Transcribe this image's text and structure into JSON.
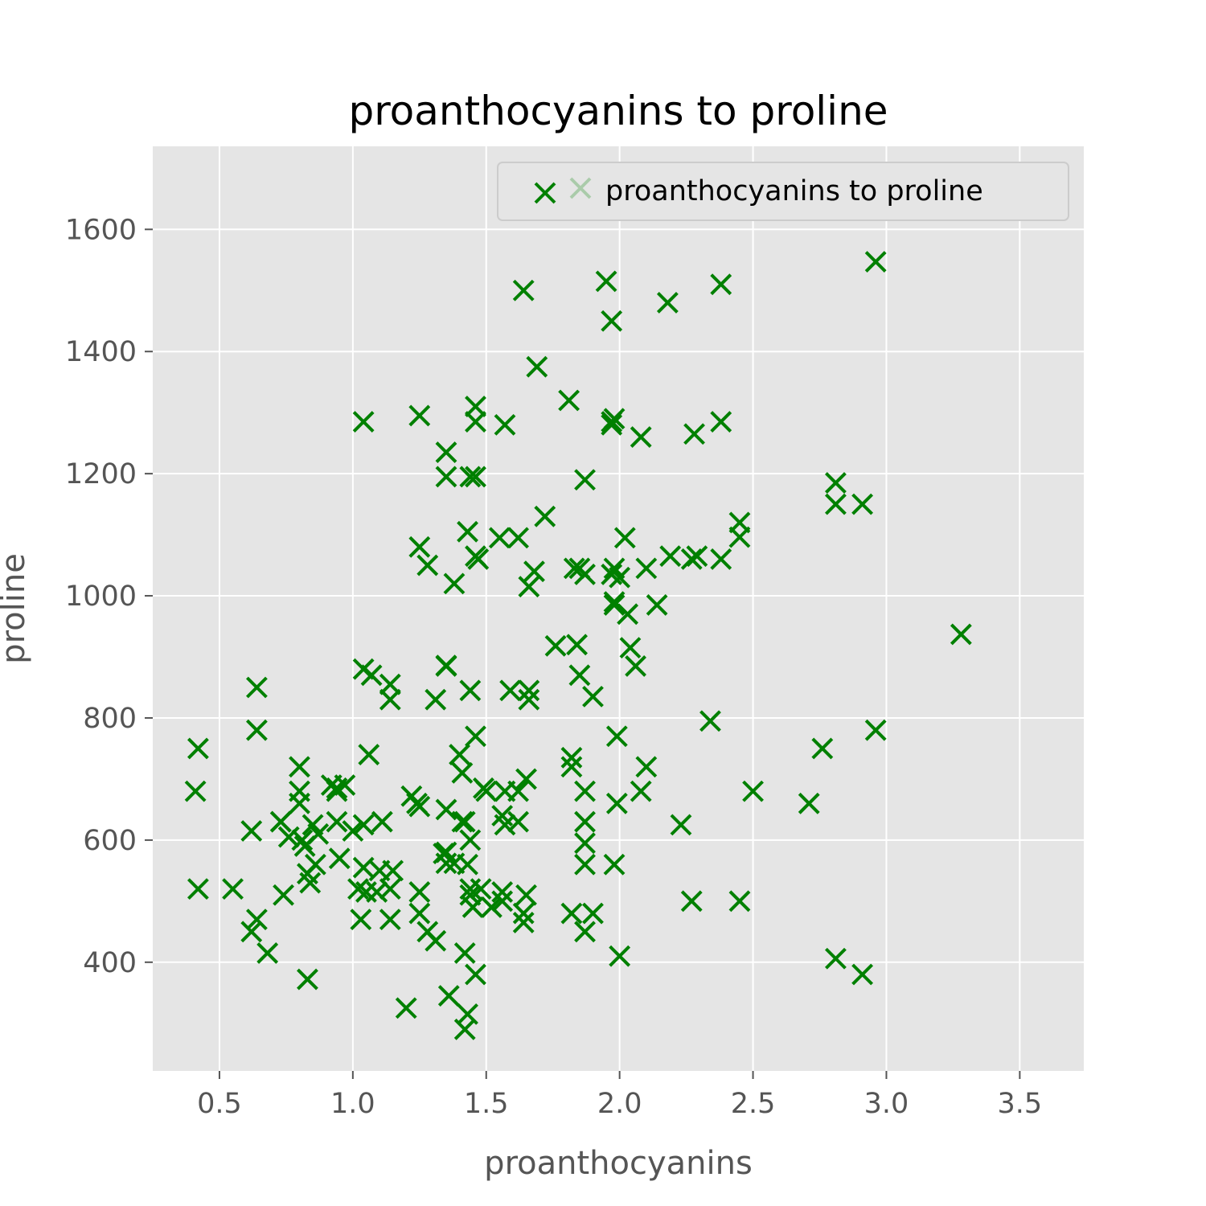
{
  "chart_data": {
    "type": "scatter",
    "title": "proanthocyanins to proline",
    "xlabel": "proanthocyanins",
    "ylabel": "proline",
    "xlim": [
      0.25,
      3.74
    ],
    "ylim": [
      222,
      1736
    ],
    "xticks": [
      "0.5",
      "1.0",
      "1.5",
      "2.0",
      "2.5",
      "3.0",
      "3.5"
    ],
    "yticks": [
      "400",
      "600",
      "800",
      "1000",
      "1200",
      "1400",
      "1600"
    ],
    "grid": true,
    "legend": {
      "position": "top-right",
      "entries": [
        "proanthocyanins to proline"
      ]
    },
    "marker": "x",
    "color": "#008000",
    "background": "#E5E5E5",
    "series": [
      {
        "name": "proanthocyanins to proline",
        "points": [
          [
            2.29,
            1065
          ],
          [
            1.28,
            1050
          ],
          [
            2.81,
            1185
          ],
          [
            2.18,
            1480
          ],
          [
            1.82,
            735
          ],
          [
            1.97,
            1450
          ],
          [
            1.98,
            1290
          ],
          [
            1.25,
            1295
          ],
          [
            1.98,
            1045
          ],
          [
            1.85,
            1045
          ],
          [
            2.38,
            1510
          ],
          [
            1.57,
            1280
          ],
          [
            1.81,
            1320
          ],
          [
            2.81,
            1150
          ],
          [
            2.96,
            1547
          ],
          [
            1.46,
            1310
          ],
          [
            1.97,
            1280
          ],
          [
            1.72,
            1130
          ],
          [
            1.86,
            1680
          ],
          [
            1.66,
            845
          ],
          [
            2.96,
            780
          ],
          [
            1.46,
            770
          ],
          [
            1.97,
            1035
          ],
          [
            1.66,
            1015
          ],
          [
            1.59,
            845
          ],
          [
            1.66,
            830
          ],
          [
            1.35,
            1195
          ],
          [
            1.97,
            1285
          ],
          [
            2.04,
            915
          ],
          [
            1.87,
            1035
          ],
          [
            1.46,
            1285
          ],
          [
            2.91,
            1150
          ],
          [
            1.35,
            1235
          ],
          [
            2.0,
            1030
          ],
          [
            1.47,
            1060
          ],
          [
            2.02,
            1095
          ],
          [
            2.1,
            1045
          ],
          [
            2.19,
            1065
          ],
          [
            1.69,
            1375
          ],
          [
            1.25,
            1080
          ],
          [
            2.38,
            1060
          ],
          [
            2.45,
            1120
          ],
          [
            1.68,
            1040
          ],
          [
            1.43,
            1105
          ],
          [
            1.55,
            1095
          ],
          [
            1.98,
            990
          ],
          [
            2.08,
            1260
          ],
          [
            2.38,
            1285
          ],
          [
            1.95,
            1515
          ],
          [
            2.34,
            795
          ],
          [
            2.06,
            885
          ],
          [
            2.03,
            970
          ],
          [
            1.41,
            710
          ],
          [
            1.62,
            1095
          ],
          [
            1.84,
            920
          ],
          [
            2.27,
            1060
          ],
          [
            1.76,
            918
          ],
          [
            1.98,
            985
          ],
          [
            2.14,
            985
          ],
          [
            3.28,
            937
          ],
          [
            1.38,
            1020
          ],
          [
            1.87,
            1190
          ],
          [
            1.44,
            1195
          ],
          [
            1.9,
            835
          ],
          [
            2.27,
            500
          ],
          [
            2.28,
            1265
          ],
          [
            2.23,
            625
          ],
          [
            1.83,
            1045
          ],
          [
            1.82,
            480
          ],
          [
            0.41,
            680
          ],
          [
            0.62,
            450
          ],
          [
            1.45,
            490
          ],
          [
            1.87,
            595
          ],
          [
            0.42,
            520
          ],
          [
            1.87,
            680
          ],
          [
            1.87,
            560
          ],
          [
            0.62,
            615
          ],
          [
            1.2,
            325
          ],
          [
            2.45,
            500
          ],
          [
            1.46,
            1195
          ],
          [
            1.87,
            630
          ],
          [
            1.49,
            685
          ],
          [
            0.94,
            630
          ],
          [
            1.04,
            1285
          ],
          [
            2.81,
            406
          ],
          [
            1.46,
            1065
          ],
          [
            2.71,
            660
          ],
          [
            2.45,
            1096
          ],
          [
            1.35,
            562
          ],
          [
            1.34,
            578
          ],
          [
            1.41,
            630
          ],
          [
            0.68,
            415
          ],
          [
            1.14,
            520
          ],
          [
            1.04,
            880
          ],
          [
            2.5,
            680
          ],
          [
            1.99,
            660
          ],
          [
            0.55,
            520
          ],
          [
            1.35,
            650
          ],
          [
            1.85,
            870
          ],
          [
            1.43,
            560
          ],
          [
            1.82,
            720
          ],
          [
            1.07,
            870
          ],
          [
            1.31,
            830
          ],
          [
            1.99,
            770
          ],
          [
            1.04,
            555
          ],
          [
            2.76,
            750
          ],
          [
            1.46,
            380
          ],
          [
            1.44,
            845
          ],
          [
            0.73,
            630
          ],
          [
            1.35,
            886
          ],
          [
            1.25,
            515
          ],
          [
            2.1,
            720
          ],
          [
            1.65,
            510
          ],
          [
            1.9,
            480
          ],
          [
            1.15,
            550
          ],
          [
            0.94,
            680
          ],
          [
            1.57,
            625
          ],
          [
            1.35,
            885
          ],
          [
            1.02,
            520
          ],
          [
            1.28,
            450
          ],
          [
            1.57,
            680
          ],
          [
            1.62,
            630
          ],
          [
            1.62,
            680
          ],
          [
            1.04,
            625
          ],
          [
            1.64,
            480
          ],
          [
            1.52,
            490
          ],
          [
            0.8,
            720
          ],
          [
            0.83,
            372
          ],
          [
            2.91,
            380
          ],
          [
            1.48,
            520
          ],
          [
            1.38,
            562
          ],
          [
            1.56,
            515
          ],
          [
            1.42,
            630
          ],
          [
            0.64,
            780
          ],
          [
            1.44,
            510
          ],
          [
            0.74,
            510
          ],
          [
            1.64,
            465
          ],
          [
            1.25,
            480
          ],
          [
            0.42,
            750
          ],
          [
            1.42,
            290
          ],
          [
            1.56,
            500
          ],
          [
            0.64,
            470
          ],
          [
            1.56,
            640
          ],
          [
            1.43,
            315
          ],
          [
            1.22,
            672
          ],
          [
            1.44,
            520
          ],
          [
            1.14,
            855
          ],
          [
            0.82,
            590
          ],
          [
            1.5,
            680
          ],
          [
            1.14,
            830
          ],
          [
            0.86,
            560
          ],
          [
            1.0,
            615
          ],
          [
            1.25,
            655
          ],
          [
            0.84,
            530
          ],
          [
            1.14,
            470
          ],
          [
            0.8,
            680
          ],
          [
            0.92,
            690
          ],
          [
            1.24,
            660
          ],
          [
            0.73,
            630
          ],
          [
            0.97,
            690
          ],
          [
            1.06,
            740
          ],
          [
            0.94,
            685
          ],
          [
            0.8,
            660
          ],
          [
            1.35,
            580
          ],
          [
            0.83,
            545
          ],
          [
            0.87,
            610
          ],
          [
            1.31,
            435
          ],
          [
            1.42,
            415
          ],
          [
            1.4,
            740
          ],
          [
            0.95,
            570
          ],
          [
            1.05,
            515
          ],
          [
            0.85,
            625
          ],
          [
            0.64,
            850
          ],
          [
            1.36,
            345
          ],
          [
            1.87,
            450
          ],
          [
            1.03,
            470
          ],
          [
            1.11,
            630
          ],
          [
            0.81,
            600
          ],
          [
            1.1,
            550
          ],
          [
            0.76,
            605
          ],
          [
            1.98,
            560
          ],
          [
            2.0,
            410
          ],
          [
            2.08,
            680
          ],
          [
            1.44,
            600
          ],
          [
            1.09,
            515
          ],
          [
            1.65,
            700
          ],
          [
            1.64,
            1500
          ]
        ]
      }
    ]
  }
}
